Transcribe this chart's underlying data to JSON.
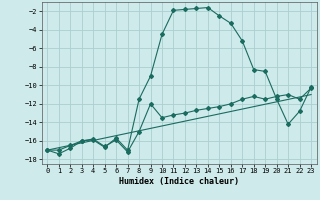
{
  "xlabel": "Humidex (Indice chaleur)",
  "bg_color": "#ceeaea",
  "grid_color": "#aacfcf",
  "line_color": "#1a6b60",
  "xlim": [
    -0.5,
    23.5
  ],
  "ylim": [
    -18.5,
    -1.0
  ],
  "yticks": [
    -18,
    -16,
    -14,
    -12,
    -10,
    -8,
    -6,
    -4,
    -2
  ],
  "xticks": [
    0,
    1,
    2,
    3,
    4,
    5,
    6,
    7,
    8,
    9,
    10,
    11,
    12,
    13,
    14,
    15,
    16,
    17,
    18,
    19,
    20,
    21,
    22,
    23
  ],
  "line1_x": [
    0,
    1,
    2,
    3,
    4,
    5,
    6,
    7,
    8,
    9,
    10,
    11,
    12,
    13,
    14,
    15,
    16,
    17,
    18,
    19,
    20,
    21,
    22,
    23
  ],
  "line1_y": [
    -17.0,
    -17.4,
    -16.8,
    -16.0,
    -15.9,
    -16.7,
    -15.7,
    -17.0,
    -11.5,
    -9.0,
    -4.5,
    -1.9,
    -1.8,
    -1.7,
    -1.6,
    -2.5,
    -3.3,
    -5.2,
    -8.3,
    -8.5,
    -11.5,
    -14.2,
    -12.8,
    -10.2
  ],
  "line2_x": [
    0,
    1,
    2,
    3,
    4,
    5,
    6,
    7,
    8,
    9,
    10,
    11,
    12,
    13,
    14,
    15,
    16,
    17,
    18,
    19,
    20,
    21,
    22,
    23
  ],
  "line2_y": [
    -17.0,
    -17.0,
    -16.5,
    -16.0,
    -15.8,
    -16.6,
    -15.9,
    -17.2,
    -15.0,
    -12.0,
    -13.5,
    -13.2,
    -13.0,
    -12.7,
    -12.5,
    -12.3,
    -12.0,
    -11.5,
    -11.2,
    -11.5,
    -11.2,
    -11.0,
    -11.5,
    -10.3
  ],
  "line3_x": [
    0,
    23
  ],
  "line3_y": [
    -17.0,
    -11.0
  ]
}
